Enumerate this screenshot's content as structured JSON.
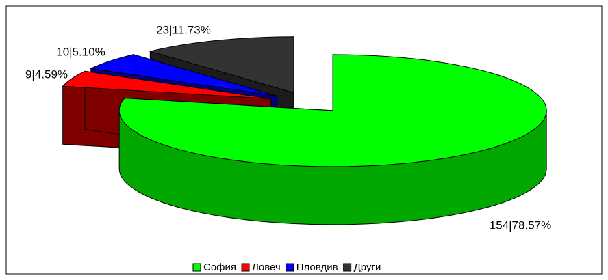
{
  "chart_data": {
    "type": "pie3d",
    "categories": [
      "София",
      "Ловеч",
      "Пловдив",
      "Други"
    ],
    "values": [
      154,
      9,
      10,
      23
    ],
    "value_labels": [
      "154|78.57%",
      "9|4.59%",
      "10|5.10%",
      "23|11.73%"
    ],
    "colors": [
      "#00ff00",
      "#ff0000",
      "#0000ff",
      "#333333"
    ],
    "side_colors": [
      "#00a800",
      "#800000",
      "#000080",
      "#1c1c1c"
    ],
    "legend": "bottom"
  }
}
